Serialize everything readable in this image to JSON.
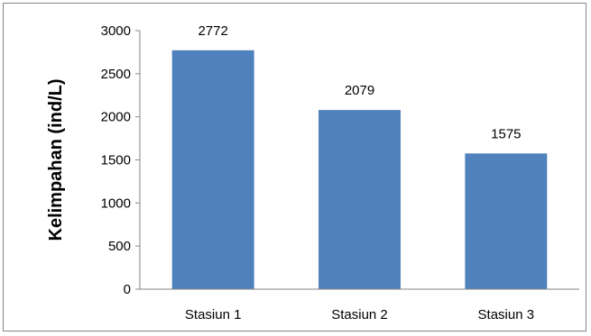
{
  "chart_data": {
    "type": "bar",
    "categories": [
      "Stasiun 1",
      "Stasiun 2",
      "Stasiun 3"
    ],
    "values": [
      2772,
      2079,
      1575
    ],
    "data_labels": [
      "2772",
      "2079",
      "1575"
    ],
    "title": "",
    "xlabel": "",
    "ylabel": "Kelimpahan (ind/L)",
    "ylim": [
      0,
      3000
    ],
    "yticks": [
      0,
      500,
      1000,
      1500,
      2000,
      2500,
      3000
    ],
    "ytick_labels": [
      "0",
      "500",
      "1000",
      "1500",
      "2000",
      "2500",
      "3000"
    ],
    "grid": false,
    "legend": "none",
    "bar_color": "#4F81BD",
    "axis_color": "#868686"
  }
}
